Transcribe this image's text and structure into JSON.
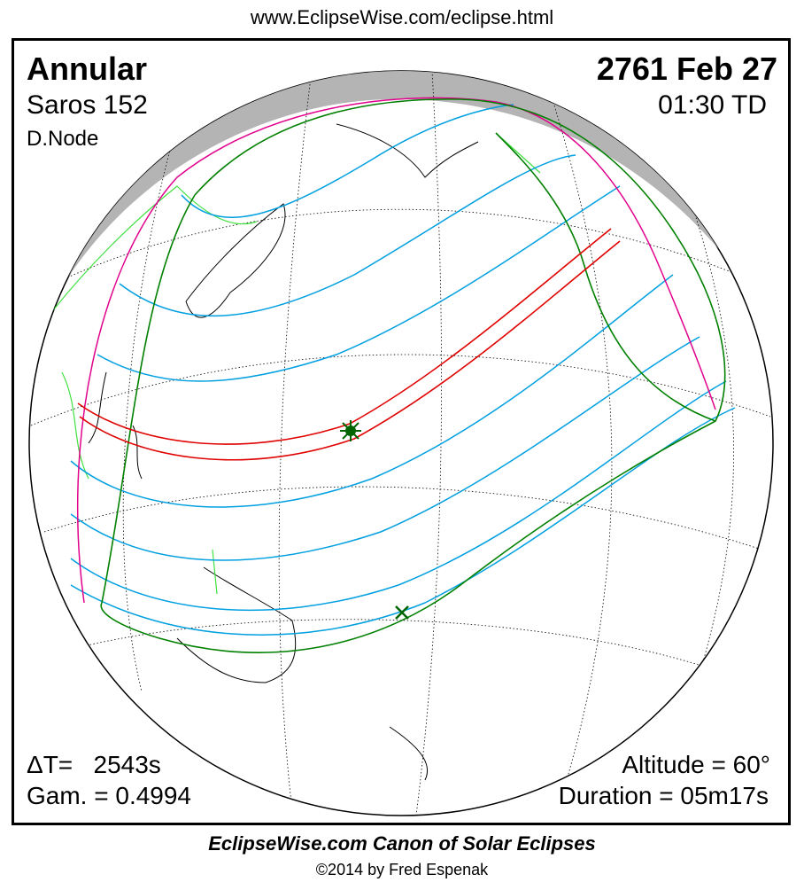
{
  "header": {
    "url": "www.EclipseWise.com/eclipse.html"
  },
  "eclipse": {
    "type": "Annular",
    "saros": "Saros 152",
    "node": "D.Node",
    "date": "2761 Feb 27",
    "time": "01:30 TD",
    "delta_t": "ΔT=   2543s",
    "gamma": "Gam. = 0.4994",
    "altitude": "Altitude = 60°",
    "duration": "Duration = 05m17s"
  },
  "footer": {
    "title": "EclipseWise.com Canon of Solar Eclipses",
    "copyright": "©2014 by Fred Espenak"
  },
  "colors": {
    "central_path": "#e00000",
    "penumbral_limits": "#008000",
    "magnitude_curves": "#00a0e0",
    "rise_set_curves": "#e0008c",
    "night": "#b4b4b4",
    "borders": "#40e040"
  },
  "markers": {
    "greatest_eclipse": "asterisk-icon",
    "subsolar_point": "cross-icon"
  }
}
